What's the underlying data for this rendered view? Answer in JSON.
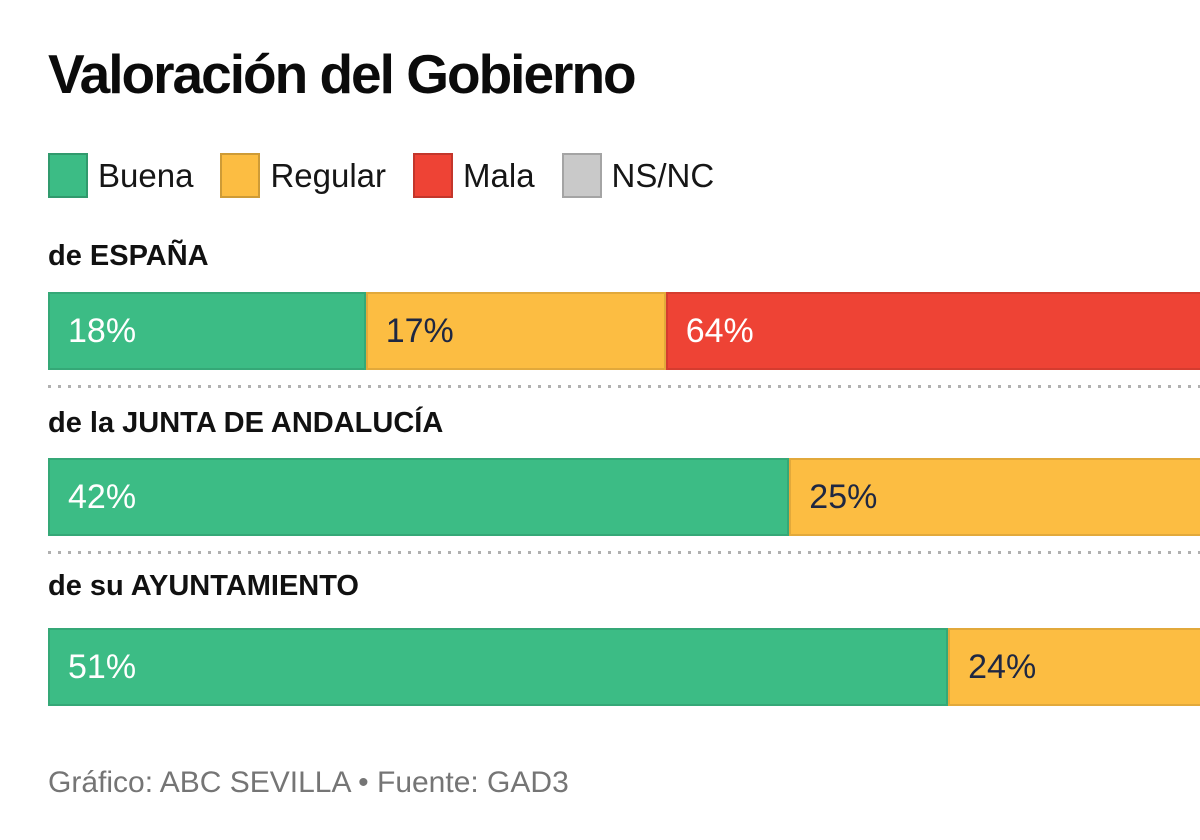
{
  "title": "Valoración del Gobierno",
  "legend": {
    "items": [
      {
        "key": "buena",
        "label": "Buena"
      },
      {
        "key": "regular",
        "label": "Regular"
      },
      {
        "key": "mala",
        "label": "Mala"
      },
      {
        "key": "nsnc",
        "label": "NS/NC"
      }
    ]
  },
  "palette": {
    "buena": "#3CBC85",
    "regular": "#FCBD42",
    "mala": "#EE4335",
    "nsnc": "#C9C9C9"
  },
  "text_on_segment": {
    "buena": "#FFFFFF",
    "regular": "#1E2742",
    "mala": "#FFFFFF",
    "nsnc": "#1E2742"
  },
  "rows": [
    {
      "label": "de ESPAÑA",
      "segments": [
        {
          "series": "buena",
          "value": 18,
          "label": "18%"
        },
        {
          "series": "regular",
          "value": 17,
          "label": "17%"
        },
        {
          "series": "mala",
          "value": 64,
          "label": "64%"
        }
      ]
    },
    {
      "label": "de la JUNTA DE ANDALUCÍA",
      "segments": [
        {
          "series": "buena",
          "value": 42,
          "label": "42%"
        },
        {
          "series": "regular",
          "value": 25,
          "label": "25%"
        }
      ]
    },
    {
      "label": "de su AYUNTAMIENTO",
      "segments": [
        {
          "series": "buena",
          "value": 51,
          "label": "51%"
        },
        {
          "series": "regular",
          "value": 24,
          "label": "24%"
        }
      ]
    }
  ],
  "footer": "Gráfico: ABC SEVILLA • Fuente: GAD3",
  "chart_data": {
    "type": "bar",
    "variant": "horizontal-stacked",
    "title": "Valoración del Gobierno",
    "categories": [
      "de ESPAÑA",
      "de la JUNTA DE ANDALUCÍA",
      "de su AYUNTAMIENTO"
    ],
    "series": [
      {
        "name": "Buena",
        "color": "#3CBC85",
        "values": [
          18,
          42,
          51
        ]
      },
      {
        "name": "Regular",
        "color": "#FCBD42",
        "values": [
          17,
          25,
          24
        ]
      },
      {
        "name": "Mala",
        "color": "#EE4335",
        "values": [
          64,
          null,
          null
        ]
      },
      {
        "name": "NS/NC",
        "color": "#C9C9C9",
        "values": [
          null,
          null,
          null
        ]
      }
    ],
    "unit": "%",
    "data_labels": "inside-start",
    "legend_position": "top",
    "bars_clipped_at_right_edge": true,
    "grid": false,
    "source": "Gráfico: ABC SEVILLA • Fuente: GAD3"
  }
}
